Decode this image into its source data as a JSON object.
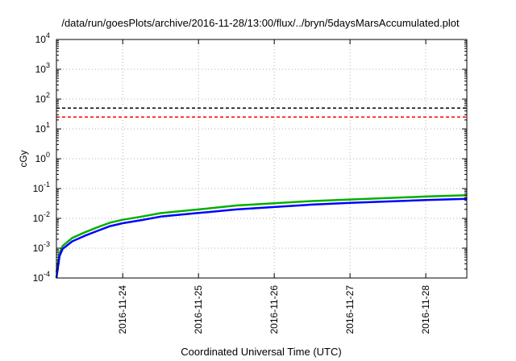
{
  "chart_data": {
    "type": "line",
    "title": "/data/run/goesPlots/archive/2016-11-28/13:00/flux/../bryn/5daysMarsAccumulated.plot",
    "xlabel": "Coordinated Universal Time (UTC)",
    "ylabel": "cGy",
    "yscale": "log",
    "ylim": [
      0.0001,
      10000
    ],
    "xlim": [
      "2016-11-23 03:00",
      "2016-11-28 13:00"
    ],
    "grid": true,
    "x_ticks": [
      "2016-11-24",
      "2016-11-25",
      "2016-11-26",
      "2016-11-27",
      "2016-11-28"
    ],
    "y_ticks": [
      {
        "value": 0.0001,
        "base": "10",
        "exp": "-4"
      },
      {
        "value": 0.001,
        "base": "10",
        "exp": "-3"
      },
      {
        "value": 0.01,
        "base": "10",
        "exp": "-2"
      },
      {
        "value": 0.1,
        "base": "10",
        "exp": "-1"
      },
      {
        "value": 1,
        "base": "10",
        "exp": "0"
      },
      {
        "value": 10,
        "base": "10",
        "exp": "1"
      },
      {
        "value": 100,
        "base": "10",
        "exp": "2"
      },
      {
        "value": 1000,
        "base": "10",
        "exp": "3"
      },
      {
        "value": 10000,
        "base": "10",
        "exp": "4"
      }
    ],
    "reference_lines": [
      {
        "y": 50,
        "color": "#000000",
        "style": "dashed"
      },
      {
        "y": 25,
        "color": "#ff0000",
        "style": "dashed"
      }
    ],
    "series": [
      {
        "color": "#00b000",
        "x": [
          "2016-11-23 03:00",
          "2016-11-23 04:00",
          "2016-11-23 05:00",
          "2016-11-23 08:00",
          "2016-11-23 12:00",
          "2016-11-23 16:00",
          "2016-11-23 20:00",
          "2016-11-24 00:00",
          "2016-11-24 06:00",
          "2016-11-24 12:00",
          "2016-11-25 00:00",
          "2016-11-25 12:00",
          "2016-11-26 00:00",
          "2016-11-26 12:00",
          "2016-11-27 00:00",
          "2016-11-27 12:00",
          "2016-11-28 00:00",
          "2016-11-28 13:00"
        ],
        "values": [
          0.00015,
          0.0007,
          0.0012,
          0.0022,
          0.0034,
          0.005,
          0.0072,
          0.009,
          0.0115,
          0.015,
          0.02,
          0.027,
          0.032,
          0.038,
          0.043,
          0.048,
          0.054,
          0.06
        ]
      },
      {
        "color": "#0000ff",
        "x": [
          "2016-11-23 03:00",
          "2016-11-23 04:00",
          "2016-11-23 05:00",
          "2016-11-23 08:00",
          "2016-11-23 12:00",
          "2016-11-23 16:00",
          "2016-11-23 20:00",
          "2016-11-24 00:00",
          "2016-11-24 06:00",
          "2016-11-24 12:00",
          "2016-11-25 00:00",
          "2016-11-25 12:00",
          "2016-11-26 00:00",
          "2016-11-26 12:00",
          "2016-11-27 00:00",
          "2016-11-27 12:00",
          "2016-11-28 00:00",
          "2016-11-28 13:00"
        ],
        "values": [
          0.0001,
          0.00055,
          0.00095,
          0.0017,
          0.0026,
          0.0038,
          0.0055,
          0.0069,
          0.0088,
          0.0115,
          0.0152,
          0.02,
          0.024,
          0.029,
          0.033,
          0.037,
          0.041,
          0.045
        ]
      }
    ]
  }
}
